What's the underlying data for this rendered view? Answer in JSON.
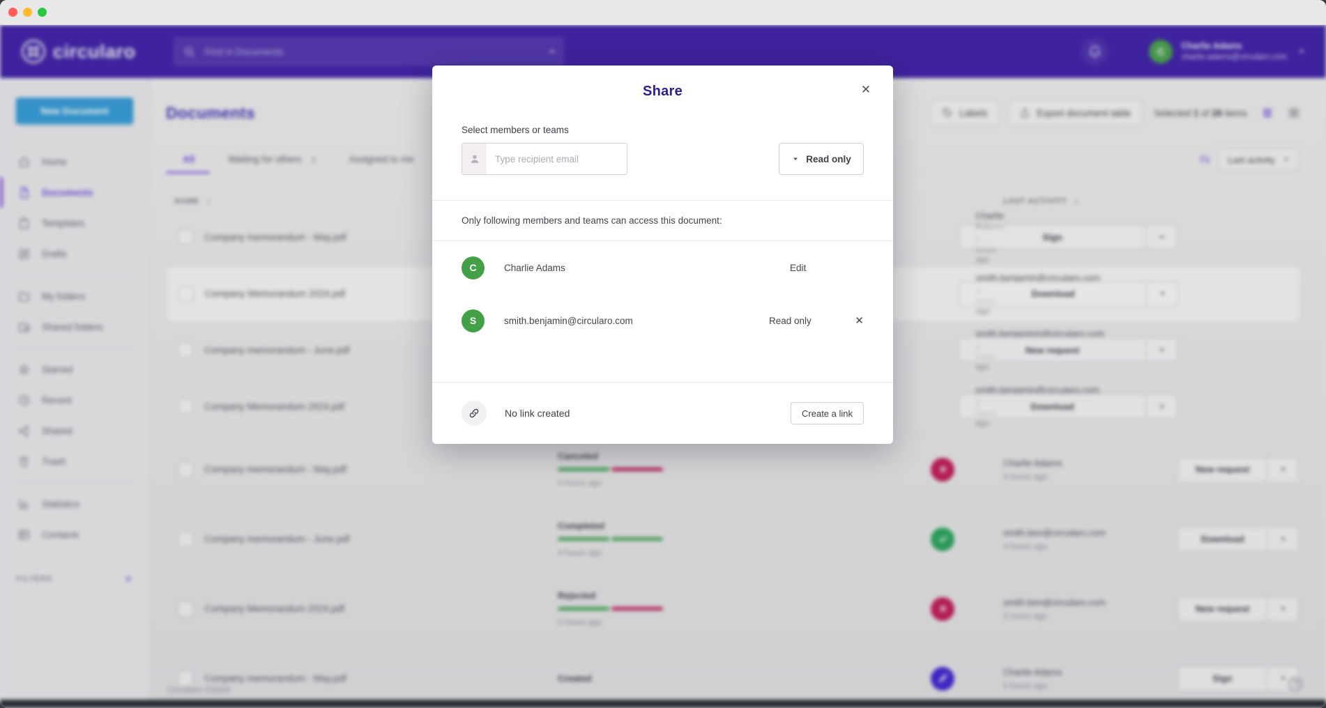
{
  "navbar": {
    "logo_text": "circularo",
    "search": {
      "placeholder": "Find in Documents"
    },
    "user": {
      "initial": "C",
      "name": "Charlie Adams",
      "email": "charlie.adams@circularo.com"
    }
  },
  "sidebar": {
    "new_document_label": "New Document",
    "items": [
      {
        "icon": "home-icon",
        "label": "Home"
      },
      {
        "icon": "document-icon",
        "label": "Documents",
        "active": true
      },
      {
        "icon": "template-icon",
        "label": "Templates"
      },
      {
        "icon": "drafts-icon",
        "label": "Drafts"
      },
      {
        "divider": true
      },
      {
        "icon": "folder-icon",
        "label": "My folders"
      },
      {
        "icon": "shared-folder-icon",
        "label": "Shared folders"
      },
      {
        "divider": true
      },
      {
        "icon": "star-icon",
        "label": "Starred"
      },
      {
        "icon": "clock-icon",
        "label": "Recent"
      },
      {
        "icon": "share-icon",
        "label": "Shared"
      },
      {
        "icon": "trash-icon",
        "label": "Trash"
      },
      {
        "divider": true
      },
      {
        "icon": "statistics-icon",
        "label": "Statistics"
      },
      {
        "icon": "contacts-icon",
        "label": "Contacts"
      }
    ],
    "filters": {
      "label": "FILTERS"
    }
  },
  "page": {
    "title": "Documents",
    "toolbar": {
      "labels_button": "Labels",
      "export_button": "Export document table",
      "selected": {
        "prefix": "Selected",
        "count": "1",
        "of": "of",
        "total": "28",
        "suffix": "items"
      }
    },
    "tabs": [
      {
        "label": "All",
        "active": true
      },
      {
        "label": "Waiting for others",
        "badge": "3"
      },
      {
        "label": "Assigned to me"
      }
    ],
    "sort_button": "Last activity"
  },
  "table": {
    "columns": {
      "name": "NAME",
      "last_activity": "LAST ACTIVITY"
    },
    "rows": [
      {
        "name": "Company memorandum - May.pdf",
        "state_icon": "sign",
        "activity": {
          "by": "Charlie Adams",
          "time": "3 hours ago"
        },
        "action": "Sign"
      },
      {
        "name": "Company Memorandum 2024.pdf",
        "selected": true,
        "state_icon": "approved",
        "activity": {
          "by": "smith.benjamin@circularo.com",
          "time": "3 hours ago"
        },
        "action": "Download"
      },
      {
        "name": "Company memorandum - June.pdf",
        "state_icon": "rejected",
        "activity": {
          "by": "smith.benjaminn@circularo.com",
          "time": "3 hours ago"
        },
        "action": "New request"
      },
      {
        "name": "Company Memorandum 2024.pdf",
        "state_icon": "approved",
        "activity": {
          "by": "smith.benjamin@circularo.com",
          "time": "3 hours ago"
        },
        "action": "Download"
      },
      {
        "name": "Company memorandum - May.pdf",
        "tall": true,
        "status": {
          "label": "Canceled",
          "bar": [
            "green",
            "red"
          ],
          "time": "4 hours ago"
        },
        "state_icon": "rejected",
        "activity": {
          "by": "Charlie Adams",
          "time": "4 hours ago"
        },
        "action": "New request"
      },
      {
        "name": "Company memorandum - June.pdf",
        "tall": true,
        "status": {
          "label": "Completed",
          "bar": [
            "green",
            "green"
          ],
          "time": "4 hours ago"
        },
        "state_icon": "approved",
        "activity": {
          "by": "smith.ben@circularo.com",
          "time": "4 hours ago"
        },
        "action": "Download"
      },
      {
        "name": "Company Memorandum 2024.pdf",
        "tall": true,
        "status": {
          "label": "Rejected",
          "bar": [
            "green",
            "red"
          ],
          "time": "5 hours ago"
        },
        "state_icon": "rejected",
        "activity": {
          "by": "smith.ben@circularo.com",
          "time": "5 hours ago"
        },
        "action": "New request"
      },
      {
        "name": "Company memorandum - May.pdf",
        "tall": true,
        "status": {
          "label": "Created"
        },
        "state_icon": "sign",
        "activity": {
          "by": "Charlie Adams",
          "time": "5 hours ago"
        },
        "action": "Sign"
      }
    ]
  },
  "footer": {
    "copyright": "Circularo ©2024"
  },
  "modal": {
    "title": "Share",
    "close_label": "✕",
    "recipient": {
      "label": "Select members or teams",
      "placeholder": "Type recipient email",
      "permission_button": "Read only"
    },
    "access_note": "Only following members and teams can access this document:",
    "members": [
      {
        "initial": "C",
        "name": "Charlie Adams",
        "permission": "Edit"
      },
      {
        "initial": "S",
        "name": "smith.benjamin@circularo.com",
        "permission": "Read only",
        "removable": true,
        "remove_label": "✕"
      }
    ],
    "link": {
      "status": "No link created",
      "button": "Create a link"
    }
  },
  "colors": {
    "navbar_purple": "#3b1aa6",
    "accent_purple": "#6d43d8",
    "title_navy": "#2a2087",
    "brand_blue": "#2e9ad7",
    "avatar_green": "#43a047",
    "status_green": "#3ca24b",
    "status_crimson": "#c01551",
    "sign_purple": "#3d1fd0",
    "traffic_red": "#ff5f57",
    "traffic_yellow": "#febc2e",
    "traffic_green": "#28c840"
  }
}
